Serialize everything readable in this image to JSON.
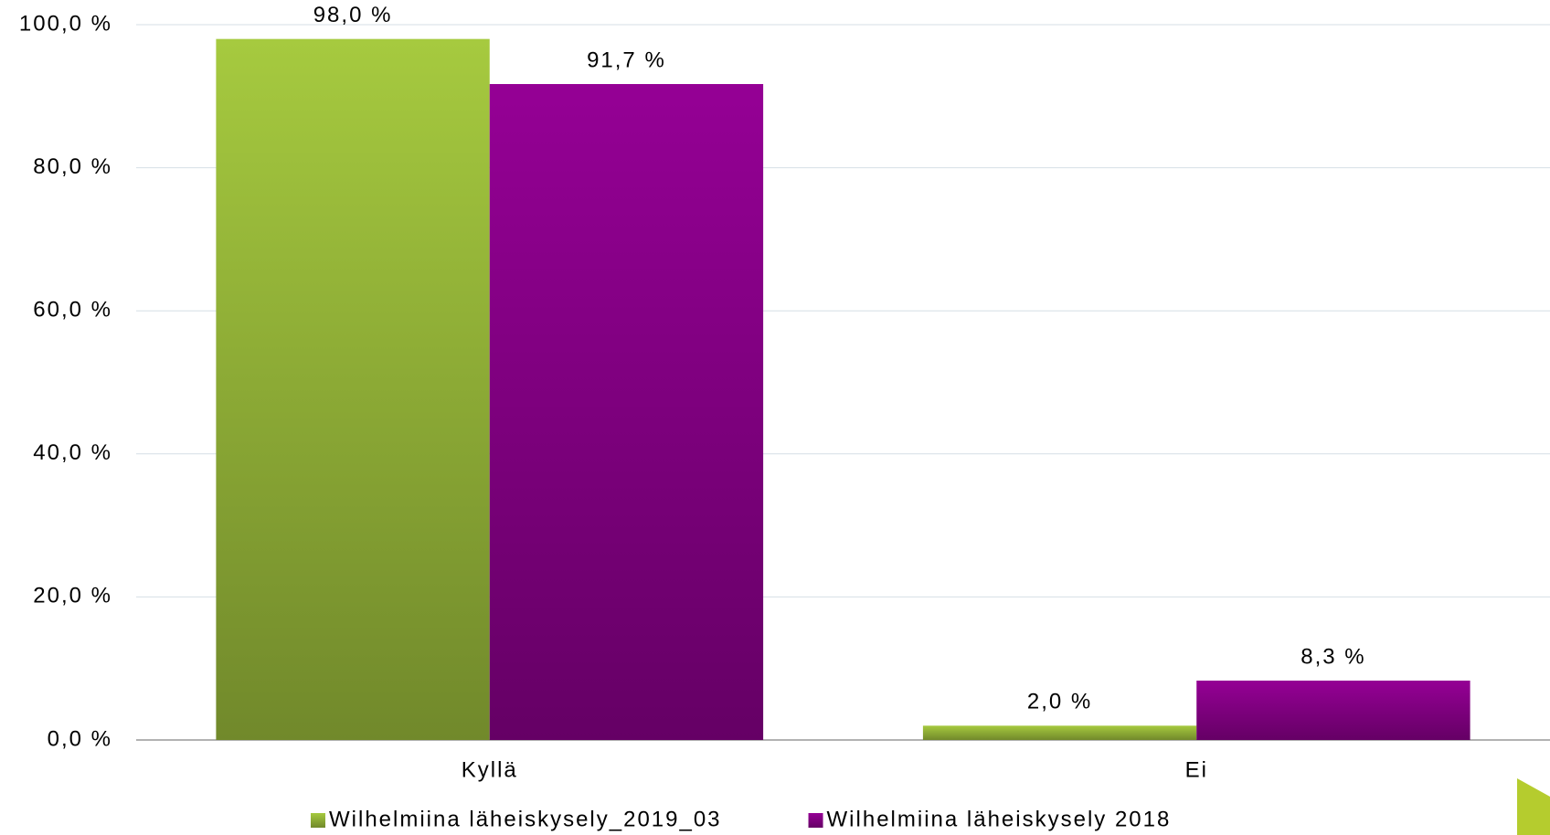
{
  "chart_data": {
    "type": "bar",
    "categories": [
      "Kyllä",
      "Ei"
    ],
    "series": [
      {
        "name": "Wilhelmiina läheiskysely_2019_03",
        "color": "#a6ca3f",
        "values": [
          98.0,
          2.0
        ],
        "value_labels": [
          "98,0 %",
          "2,0 %"
        ]
      },
      {
        "name": "Wilhelmiina läheiskysely 2018",
        "color": "#950095",
        "values": [
          91.7,
          8.3
        ],
        "value_labels": [
          "91,7 %",
          "8,3 %"
        ]
      }
    ],
    "ylim": [
      0,
      100
    ],
    "yticks": [
      {
        "value": 0,
        "label": "0,0 %"
      },
      {
        "value": 20,
        "label": "20,0 %"
      },
      {
        "value": 40,
        "label": "40,0 %"
      },
      {
        "value": 60,
        "label": "60,0 %"
      },
      {
        "value": 80,
        "label": "80,0 %"
      },
      {
        "value": 100,
        "label": "100,0 %"
      }
    ],
    "grid": true,
    "legend": "bottom"
  }
}
